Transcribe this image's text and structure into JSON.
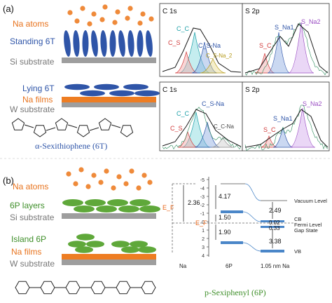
{
  "panel_a": {
    "label": "(a)",
    "upper_schematic": {
      "na_atoms": "Na atoms",
      "standing": "Standing 6T",
      "substrate": "Si substrate"
    },
    "lower_schematic": {
      "lying": "Lying 6T",
      "na_films": "Na films",
      "substrate": "W substrate"
    },
    "molecule_name": "α-Sexithiophene (6T)",
    "spectra": [
      {
        "title": "C 1s",
        "labels": {
          "cc": "C_C",
          "cs": "C_S",
          "csna": "C_S-Na",
          "csna2": "C_S-Na_2"
        }
      },
      {
        "title": "S 2p",
        "labels": {
          "sc": "S_C",
          "sna1": "S_Na1",
          "sna2": "S_Na2"
        }
      },
      {
        "title": "C 1s",
        "labels": {
          "cc": "C_C",
          "cs": "C_S",
          "csna": "C_S-Na",
          "ccna": "C_C-Na"
        }
      },
      {
        "title": "S 2p",
        "labels": {
          "sc": "S_C",
          "sna1": "S_Na1",
          "sna2": "S_Na2"
        }
      }
    ]
  },
  "panel_b": {
    "label": "(b)",
    "upper_schematic": {
      "na_atoms": "Na atoms",
      "layers": "6P layers",
      "substrate": "Si substrate"
    },
    "lower_schematic": {
      "island": "Island 6P",
      "na_films": "Na films",
      "substrate": "W substrate"
    },
    "molecule_name": "p-Sexiphenyl (6P)",
    "energy_diagram": {
      "ticks": [
        "-5",
        "-4",
        "-3",
        "-2",
        "-1",
        "0",
        "1",
        "2",
        "3",
        "4"
      ],
      "columns": [
        "Na",
        "6P",
        "1.05 nm Na"
      ],
      "values": {
        "na_gap": "2.36",
        "p6_upper": "4.17",
        "p6_a": "1.50",
        "p6_b": "1.90",
        "na105_top": "2.49",
        "na105_a": "0.02",
        "na105_b": "0.33",
        "na105_c": "3.38"
      },
      "level_labels": [
        "Vacuum Level",
        "CB",
        "Fermi Level",
        "Gap State",
        "VB"
      ],
      "fermi_symbol": "E_F",
      "colors": {
        "band": "#4a86c8",
        "arrow": "#e8661a",
        "line": "#7a7a7a"
      }
    }
  },
  "colors": {
    "na_atom": "#ef8a3a",
    "standing_6t": "#2f55a8",
    "six_p": "#5fa83a",
    "na_film": "#ee7d22",
    "si_substrate": "#9e9e9e",
    "label_orange": "#e8741f",
    "label_blue": "#2f55a8",
    "label_green": "#3f8f2a"
  }
}
